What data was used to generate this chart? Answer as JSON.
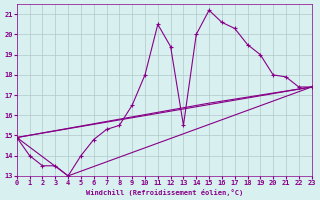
{
  "xlabel": "Windchill (Refroidissement éolien,°C)",
  "background_color": "#d8f0f0",
  "grid_color": "#b0c8c8",
  "line_color": "#880088",
  "xlim": [
    0,
    23
  ],
  "ylim": [
    13,
    21.5
  ],
  "xticks": [
    0,
    1,
    2,
    3,
    4,
    5,
    6,
    7,
    8,
    9,
    10,
    11,
    12,
    13,
    14,
    15,
    16,
    17,
    18,
    19,
    20,
    21,
    22,
    23
  ],
  "yticks": [
    13,
    14,
    15,
    16,
    17,
    18,
    19,
    20,
    21
  ],
  "main_x": [
    0,
    1,
    2,
    3,
    4,
    5,
    6,
    7,
    8,
    9,
    10,
    11,
    12,
    13,
    14,
    15,
    16,
    17,
    18,
    19,
    20,
    21,
    22,
    23
  ],
  "main_y": [
    14.9,
    14.0,
    13.5,
    13.5,
    13.0,
    14.0,
    14.8,
    15.3,
    15.5,
    16.5,
    18.0,
    20.5,
    19.4,
    15.5,
    20.0,
    21.2,
    20.6,
    20.3,
    19.5,
    19.0,
    18.0,
    17.9,
    17.4,
    17.4
  ],
  "line2_x": [
    0,
    23
  ],
  "line2_y": [
    14.9,
    17.4
  ],
  "line3_x": [
    0,
    15,
    23
  ],
  "line3_y": [
    14.9,
    16.6,
    17.4
  ],
  "line4_x": [
    0,
    4,
    23
  ],
  "line4_y": [
    14.9,
    13.0,
    17.4
  ]
}
